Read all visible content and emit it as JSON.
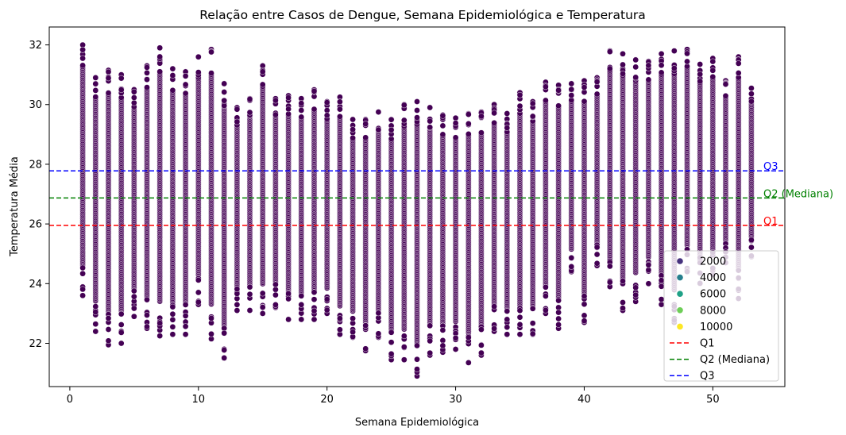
{
  "chart_data": {
    "type": "scatter",
    "title": "Relação entre Casos de Dengue, Semana Epidemiológica e Temperatura",
    "xlabel": "Semana Epidemiológica",
    "ylabel": "Temperatura Média",
    "xlim": [
      -1.6,
      55.6
    ],
    "ylim": [
      20.55,
      32.6
    ],
    "xticks": [
      0,
      10,
      20,
      30,
      40,
      50
    ],
    "yticks": [
      22,
      24,
      26,
      28,
      30,
      32
    ],
    "grid": false,
    "legend_position": "lower-right",
    "hue_colormap": "viridis",
    "hue_legend": [
      {
        "label": "2000",
        "color": "#46327e"
      },
      {
        "label": "4000",
        "color": "#277f8e"
      },
      {
        "label": "6000",
        "color": "#1fa187"
      },
      {
        "label": "8000",
        "color": "#6ece58"
      },
      {
        "label": "10000",
        "color": "#fde725"
      }
    ],
    "point_color": "#440154",
    "weeks": [
      1,
      2,
      3,
      4,
      5,
      6,
      7,
      8,
      9,
      10,
      11,
      12,
      13,
      14,
      15,
      16,
      17,
      18,
      19,
      20,
      21,
      22,
      23,
      24,
      25,
      26,
      27,
      28,
      29,
      30,
      31,
      32,
      33,
      34,
      35,
      36,
      37,
      38,
      39,
      40,
      41,
      42,
      43,
      44,
      45,
      46,
      47,
      48,
      49,
      50,
      51,
      52,
      53
    ],
    "week_min": [
      23.6,
      22.4,
      21.95,
      22.0,
      22.9,
      22.5,
      22.25,
      22.3,
      22.3,
      23.3,
      22.15,
      21.5,
      23.1,
      23.1,
      23.0,
      23.2,
      22.8,
      22.8,
      22.8,
      23.0,
      22.3,
      22.2,
      21.75,
      22.2,
      21.45,
      21.45,
      20.9,
      21.6,
      21.7,
      21.8,
      21.35,
      21.6,
      22.4,
      22.3,
      22.3,
      22.3,
      23.0,
      22.5,
      24.4,
      22.7,
      24.6,
      23.9,
      23.1,
      23.4,
      24.0,
      23.3,
      22.7,
      24.4,
      24.0,
      24.3,
      24.7,
      23.5,
      24.9
    ],
    "week_max": [
      32.0,
      30.9,
      31.15,
      31.0,
      30.5,
      31.3,
      31.9,
      31.2,
      31.1,
      31.6,
      31.85,
      30.7,
      29.9,
      30.2,
      31.3,
      30.2,
      30.3,
      30.2,
      30.5,
      30.1,
      30.25,
      29.5,
      29.5,
      29.75,
      29.5,
      30.0,
      30.1,
      29.9,
      29.65,
      29.55,
      29.7,
      29.75,
      30.0,
      29.7,
      30.4,
      30.1,
      30.75,
      30.65,
      30.7,
      30.8,
      30.9,
      31.8,
      31.7,
      31.5,
      31.45,
      31.7,
      31.8,
      31.85,
      31.35,
      31.55,
      30.8,
      31.6,
      30.55
    ],
    "reference_lines": [
      {
        "name": "Q1",
        "label": "Q1",
        "value": 25.95,
        "color": "#ff0000",
        "style": "dashed"
      },
      {
        "name": "Q2 (Mediana)",
        "label": "Q2 (Mediana)",
        "value": 26.87,
        "color": "#008000",
        "style": "dashed"
      },
      {
        "name": "Q3",
        "label": "Q3",
        "value": 27.78,
        "color": "#0000ff",
        "style": "dashed"
      }
    ]
  }
}
